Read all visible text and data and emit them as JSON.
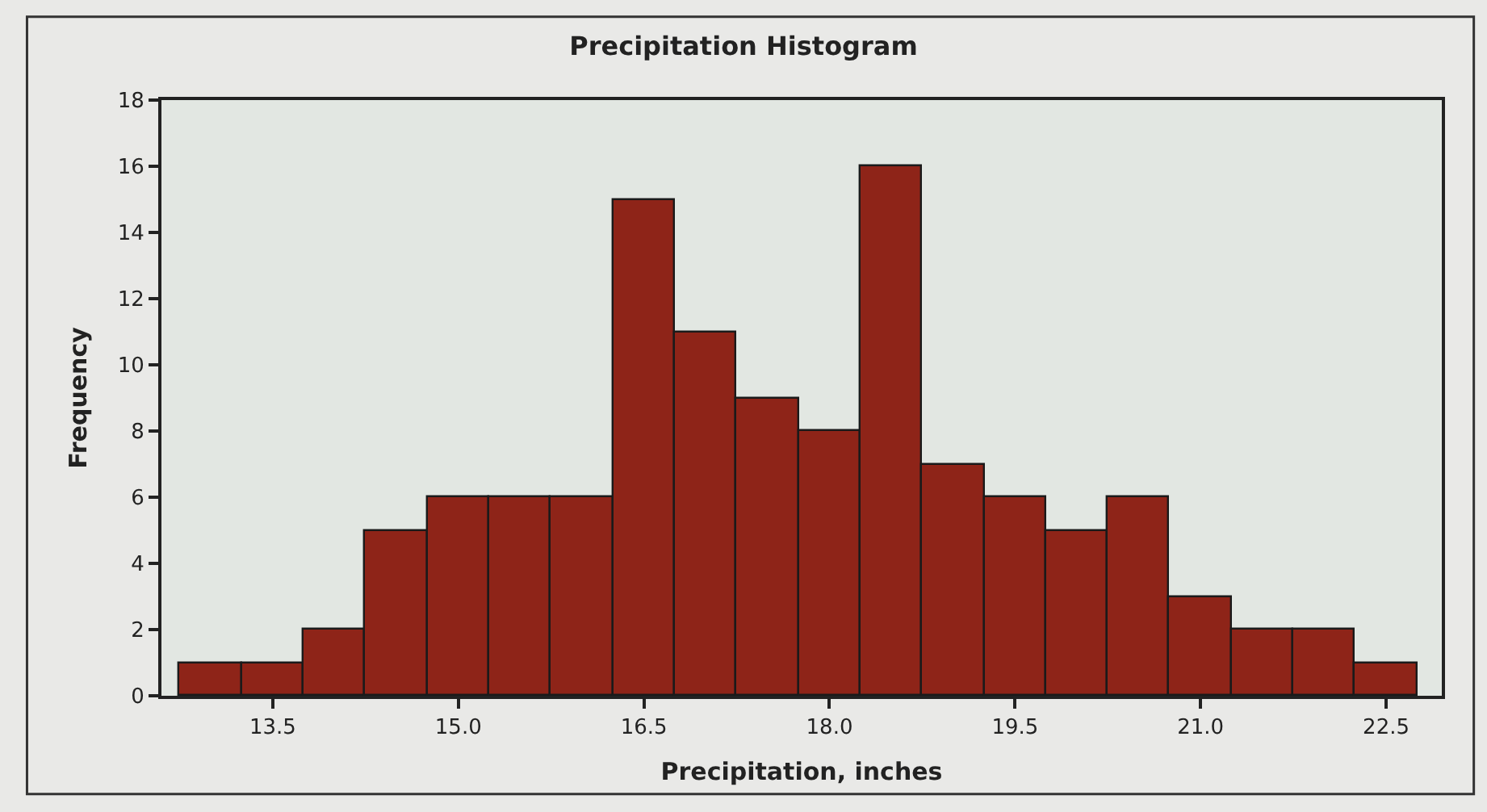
{
  "chart_data": {
    "type": "histogram",
    "title": "Precipitation Histogram",
    "xlabel": "Precipitation, inches",
    "ylabel": "Frequency",
    "bins": [
      12.75,
      13.25,
      13.75,
      14.25,
      14.75,
      15.25,
      15.75,
      16.25,
      16.75,
      17.25,
      17.75,
      18.25,
      18.75,
      19.25,
      19.75,
      20.25,
      20.75,
      21.25,
      21.75,
      22.25,
      22.75
    ],
    "values": [
      1,
      1,
      2,
      5,
      6,
      6,
      6,
      15,
      11,
      9,
      8,
      16,
      7,
      6,
      5,
      6,
      3,
      2,
      2,
      1
    ],
    "color": "#8e2418",
    "xlim": [
      12.6,
      22.95
    ],
    "xticks": [
      {
        "value": 13.5,
        "label": "13.5"
      },
      {
        "value": 15.0,
        "label": "15.0"
      },
      {
        "value": 16.5,
        "label": "16.5"
      },
      {
        "value": 18.0,
        "label": "18.0"
      },
      {
        "value": 19.5,
        "label": "19.5"
      },
      {
        "value": 21.0,
        "label": "21.0"
      },
      {
        "value": 22.5,
        "label": "22.5"
      }
    ],
    "ylim": [
      0,
      18
    ],
    "yticks": [
      0,
      2,
      4,
      6,
      8,
      10,
      12,
      14,
      16,
      18
    ],
    "grid": false
  }
}
